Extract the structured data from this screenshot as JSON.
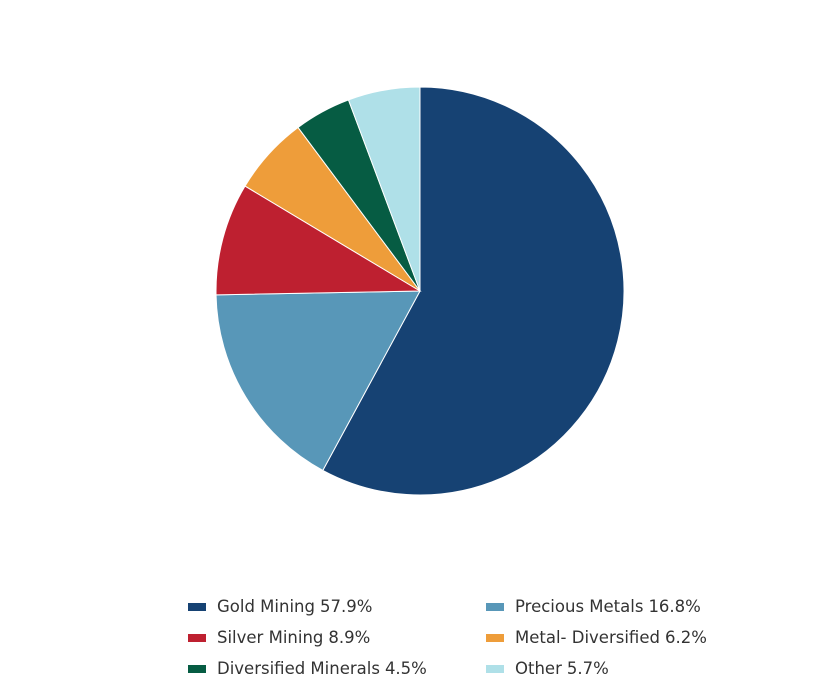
{
  "chart_data": {
    "type": "pie",
    "categories": [
      "Gold Mining",
      "Precious Metals",
      "Silver Mining",
      "Metal- Diversified",
      "Diversified Minerals",
      "Other"
    ],
    "values": [
      57.9,
      16.8,
      8.9,
      6.2,
      4.5,
      5.7
    ],
    "value_labels": [
      "57.9%",
      "16.8%",
      "8.9%",
      "6.2%",
      "4.5%",
      "5.7%"
    ],
    "colors": [
      "#164273",
      "#5897b8",
      "#be2030",
      "#ee9d3a",
      "#065c43",
      "#afe0e8"
    ],
    "legend": "bottom"
  }
}
